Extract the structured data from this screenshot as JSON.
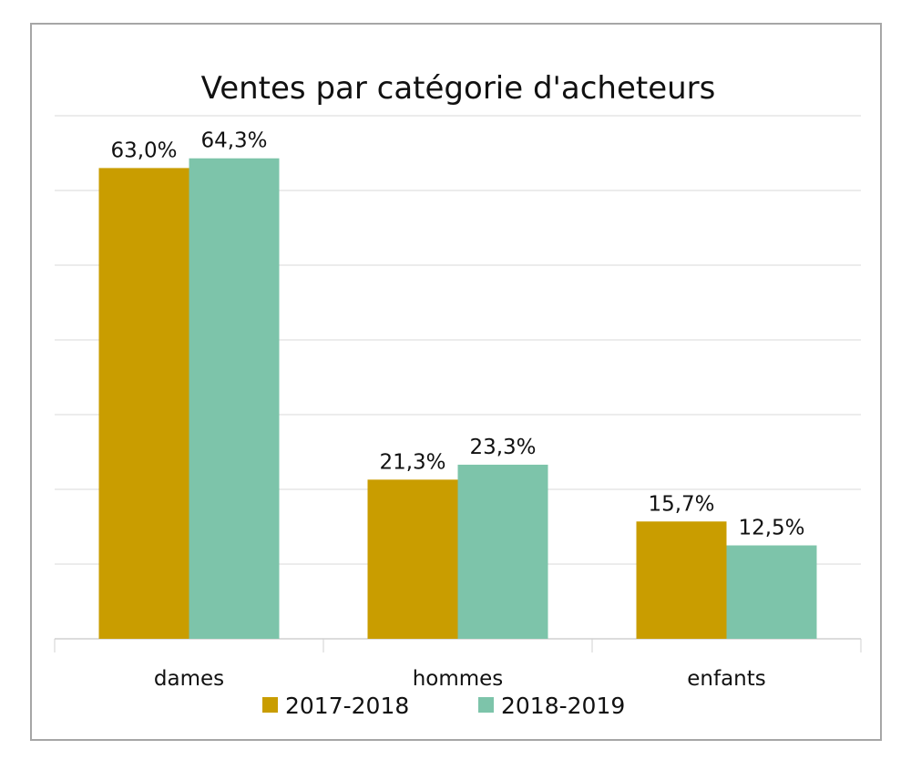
{
  "chart_data": {
    "type": "bar",
    "title": "Ventes par catégorie d'acheteurs",
    "categories": [
      "dames",
      "hommes",
      "enfants"
    ],
    "series": [
      {
        "name": "2017-2018",
        "values": [
          63.0,
          21.3,
          15.7
        ],
        "labels": [
          "63,0%",
          "21,3%",
          "15,7%"
        ],
        "color": "#C99D00"
      },
      {
        "name": "2018-2019",
        "values": [
          64.3,
          23.3,
          12.5
        ],
        "labels": [
          "64,3%",
          "23,3%",
          "12,5%"
        ],
        "color": "#7DC4AA"
      }
    ],
    "xlabel": "",
    "ylabel": "",
    "ylim": [
      0,
      70
    ],
    "y_gridline_step": 10,
    "y_tick_labels_shown": false,
    "grid": true,
    "legend": "bottom"
  }
}
